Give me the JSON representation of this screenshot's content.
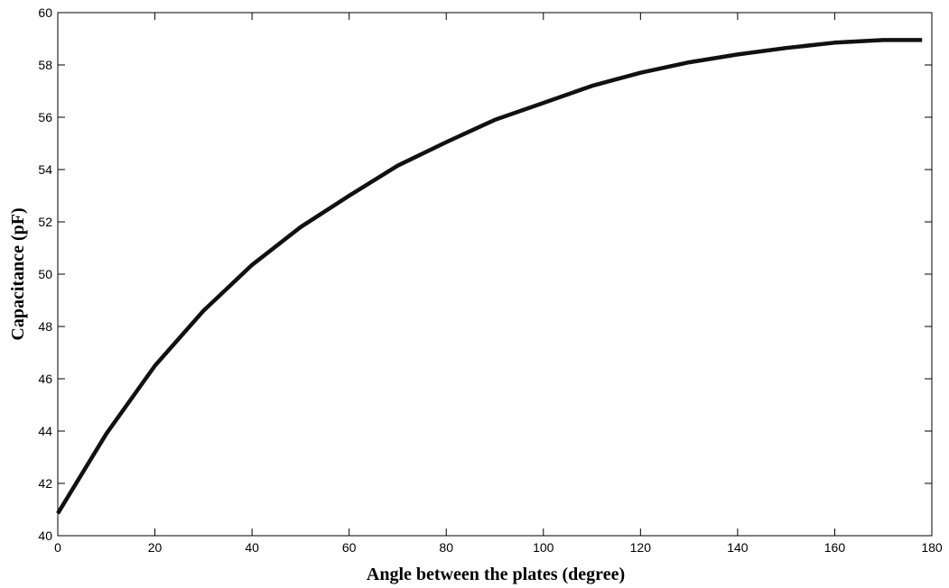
{
  "chart_data": {
    "type": "line",
    "title": "",
    "xlabel": "Angle between the plates (degree)",
    "ylabel": "Capacitance (pF)",
    "xlim": [
      0,
      180
    ],
    "ylim": [
      40,
      60
    ],
    "x_ticks": [
      0,
      20,
      40,
      60,
      80,
      100,
      120,
      140,
      160,
      180
    ],
    "y_ticks": [
      40,
      42,
      44,
      46,
      48,
      50,
      52,
      54,
      56,
      58,
      60
    ],
    "grid": false,
    "legend": "none",
    "colors": {
      "line": "#111111",
      "axis": "#000000"
    },
    "series": [
      {
        "x": [
          0,
          10,
          20,
          30,
          40,
          50,
          60,
          70,
          80,
          90,
          100,
          110,
          120,
          130,
          140,
          150,
          160,
          170,
          178
        ],
        "y": [
          40.85,
          43.9,
          46.5,
          48.6,
          50.35,
          51.8,
          53.0,
          54.15,
          55.05,
          55.9,
          56.55,
          57.2,
          57.7,
          58.1,
          58.4,
          58.65,
          58.85,
          58.95,
          58.95
        ]
      }
    ]
  }
}
